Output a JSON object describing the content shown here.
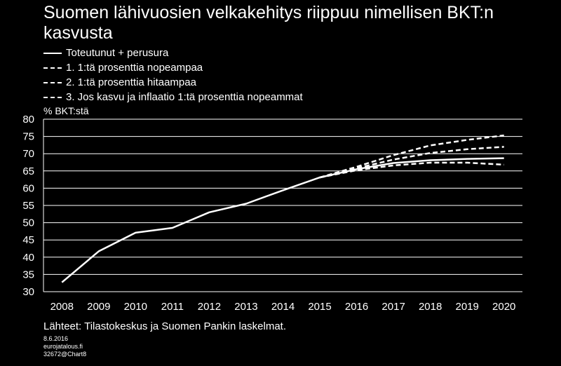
{
  "title": "Suomen lähivuosien velkakehitys riippuu nimellisen BKT:n kasvusta",
  "unit_label": "% BKT:stä",
  "source": "Lähteet: Tilastokeskus ja Suomen Pankin laskelmat.",
  "meta": {
    "date": "8.6.2016",
    "site": "eurojatalous.fi",
    "chart_id": "32672@Chart8"
  },
  "colors": {
    "background": "#000000",
    "line": "#ffffff",
    "grid": "#ffffff"
  },
  "chart_data": {
    "type": "line",
    "title": "Suomen lähivuosien velkakehitys riippuu nimellisen BKT:n kasvusta",
    "ylabel": "% BKT:stä",
    "xlabel": "",
    "categories": [
      "2008",
      "2009",
      "2010",
      "2011",
      "2012",
      "2013",
      "2014",
      "2015",
      "2016",
      "2017",
      "2018",
      "2019",
      "2020"
    ],
    "ylim": [
      30,
      80
    ],
    "yticks": [
      30,
      35,
      40,
      45,
      50,
      55,
      60,
      65,
      70,
      75,
      80
    ],
    "grid": true,
    "legend_position": "top-left",
    "series": [
      {
        "name": "Toteutunut + perusura",
        "style": "solid",
        "values": [
          32.7,
          41.7,
          47.1,
          48.5,
          53.0,
          55.5,
          59.4,
          63.1,
          65.5,
          67.3,
          68.1,
          68.5,
          68.7
        ]
      },
      {
        "name": "1. 1:tä prosenttia nopeampaa",
        "style": "dashed",
        "values": [
          null,
          null,
          null,
          null,
          null,
          null,
          null,
          63.1,
          65.2,
          66.6,
          67.4,
          67.4,
          66.8
        ]
      },
      {
        "name": "2. 1:tä prosenttia hitaampaa",
        "style": "dashed",
        "values": [
          null,
          null,
          null,
          null,
          null,
          null,
          null,
          63.1,
          65.8,
          68.3,
          70.2,
          71.3,
          72.0
        ]
      },
      {
        "name": "3. Jos kasvu ja inflaatio 1:tä prosenttia nopeammat",
        "style": "dashed",
        "values": [
          null,
          null,
          null,
          null,
          null,
          null,
          null,
          63.1,
          66.2,
          69.6,
          72.4,
          74.0,
          75.3
        ]
      }
    ]
  }
}
